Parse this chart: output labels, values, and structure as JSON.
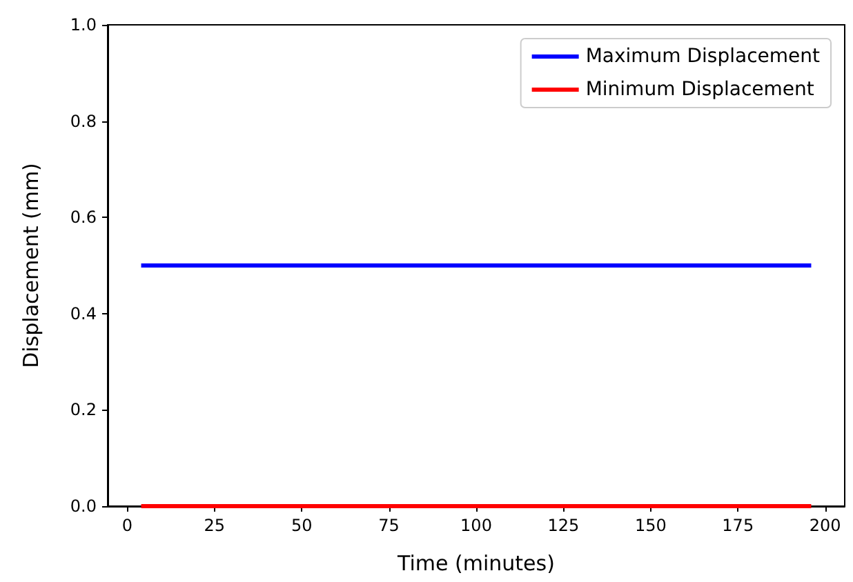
{
  "chart_data": {
    "type": "line",
    "xlabel": "Time (minutes)",
    "ylabel": "Displacement (mm)",
    "x": [
      4,
      196
    ],
    "series": [
      {
        "name": "Maximum Displacement",
        "color": "#0000ff",
        "values": [
          0.5,
          0.5
        ]
      },
      {
        "name": "Minimum Displacement",
        "color": "#ff0000",
        "values": [
          0,
          0
        ]
      }
    ],
    "xlim": [
      -5.6,
      205.6
    ],
    "xticks": [
      0,
      25,
      50,
      75,
      100,
      125,
      150,
      175,
      200
    ],
    "ylim": [
      0,
      1
    ],
    "yticks": [
      {
        "value": 0,
        "label": "0.0"
      },
      {
        "value": 0.2,
        "label": "0.2"
      },
      {
        "value": 0.4,
        "label": "0.4"
      },
      {
        "value": 0.6,
        "label": "0.6"
      },
      {
        "value": 0.8,
        "label": "0.8"
      },
      {
        "value": 1,
        "label": "1.0"
      }
    ],
    "legend": "top right",
    "grid": false,
    "marker": "none",
    "line_style": "solid"
  }
}
